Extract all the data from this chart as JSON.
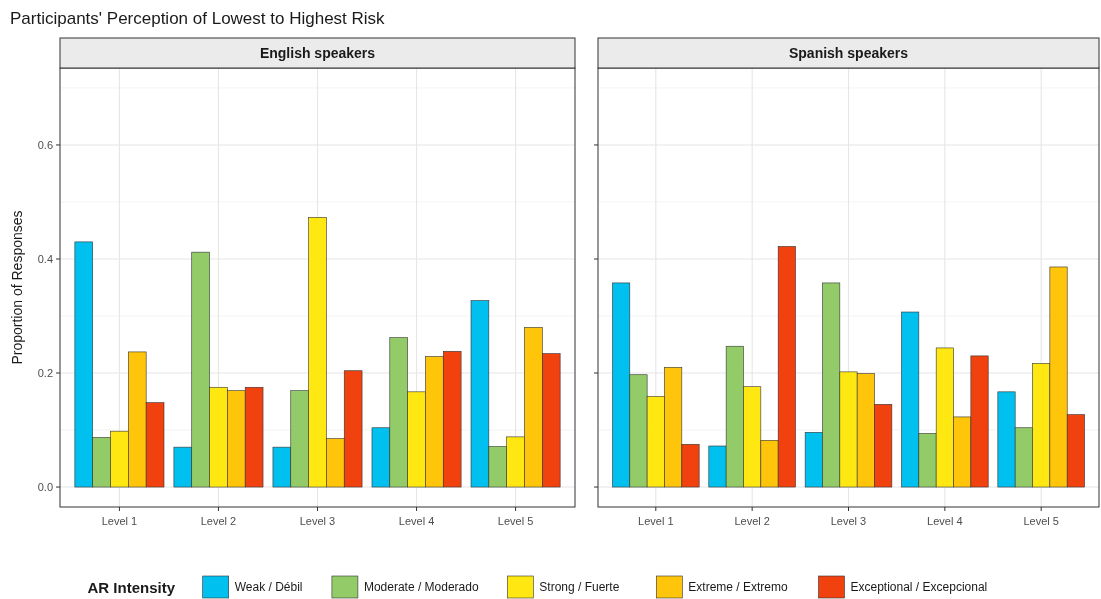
{
  "chart_data": [
    {
      "type": "bar",
      "title": "Participants' Perception of Lowest to Highest Risk",
      "subtitle": "English speakers",
      "ylabel": "Proportion of Responses",
      "legend_title": "AR Intensity",
      "categories": [
        "Level 1",
        "Level 2",
        "Level 3",
        "Level 4",
        "Level 5"
      ],
      "ylim": [
        -0.035,
        0.735
      ],
      "yticks": [
        {
          "value": 0,
          "label": "0.0"
        },
        0.2,
        0.4,
        0.6
      ],
      "grid": true,
      "legend": "bottom",
      "series": [
        {
          "name": "Weak / Débil",
          "color": "#00c0ef",
          "values": [
            0.43,
            0.07,
            0.07,
            0.104,
            0.327
          ]
        },
        {
          "name": "Moderate / Moderado",
          "color": "#92cb68",
          "values": [
            0.087,
            0.412,
            0.169,
            0.262,
            0.071
          ]
        },
        {
          "name": "Strong / Fuerte",
          "color": "#ffe811",
          "values": [
            0.098,
            0.175,
            0.473,
            0.167,
            0.088
          ]
        },
        {
          "name": "Extreme / Extremo",
          "color": "#ffc50b",
          "values": [
            0.237,
            0.169,
            0.085,
            0.229,
            0.28
          ]
        },
        {
          "name": "Exceptional / Excepcional",
          "color": "#f0410f",
          "values": [
            0.148,
            0.175,
            0.204,
            0.238,
            0.234
          ]
        }
      ]
    },
    {
      "type": "bar",
      "subtitle": "Spanish speakers",
      "categories": [
        "Level 1",
        "Level 2",
        "Level 3",
        "Level 4",
        "Level 5"
      ],
      "ylim": [
        -0.035,
        0.735
      ],
      "yticks": [
        0,
        0.2,
        0.4,
        0.6
      ],
      "grid": true,
      "tick_labels": "x",
      "legend": "bottom",
      "series": [
        {
          "name": "Weak / Débil",
          "color": "#00c0ef",
          "values": [
            0.358,
            0.072,
            0.096,
            0.307,
            0.167
          ]
        },
        {
          "name": "Moderate / Moderado",
          "color": "#92cb68",
          "values": [
            0.197,
            0.247,
            0.358,
            0.094,
            0.104
          ]
        },
        {
          "name": "Strong / Fuerte",
          "color": "#ffe811",
          "values": [
            0.159,
            0.176,
            0.202,
            0.244,
            0.217
          ]
        },
        {
          "name": "Extreme / Extremo",
          "color": "#ffc50b",
          "values": [
            0.21,
            0.082,
            0.199,
            0.123,
            0.386
          ]
        },
        {
          "name": "Exceptional / Excepcional",
          "color": "#f0410f",
          "values": [
            0.075,
            0.422,
            0.145,
            0.23,
            0.127
          ]
        }
      ]
    }
  ]
}
